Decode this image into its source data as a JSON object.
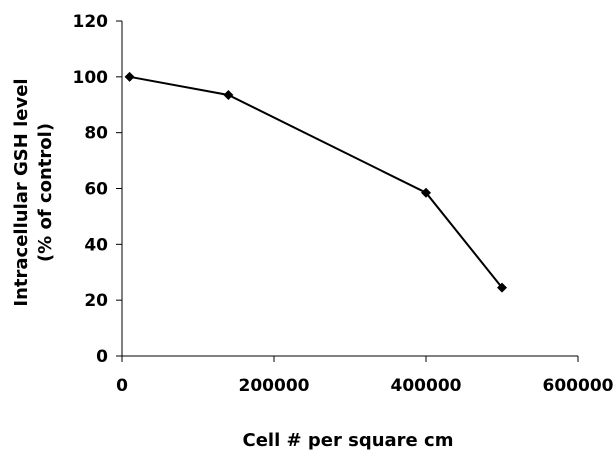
{
  "chart_data": {
    "type": "line",
    "title": "",
    "xlabel": "Cell # per square cm",
    "ylabel_lines": [
      "Intracellular GSH level",
      "(% of control)"
    ],
    "xlim": [
      0,
      600000
    ],
    "ylim": [
      0,
      120
    ],
    "x_ticks": [
      0,
      200000,
      400000,
      600000
    ],
    "x_tick_labels": [
      "0",
      "200000",
      "400000",
      "600000"
    ],
    "y_ticks": [
      0,
      20,
      40,
      60,
      80,
      100,
      120
    ],
    "y_tick_labels": [
      "0",
      "20",
      "40",
      "60",
      "80",
      "100",
      "120"
    ],
    "grid": false,
    "legend": "none",
    "marker": "diamond",
    "line_color": "#000000",
    "series": [
      {
        "x": [
          10000,
          140000,
          400000,
          500000
        ],
        "y": [
          100,
          93.5,
          58.5,
          24.5
        ]
      }
    ]
  }
}
